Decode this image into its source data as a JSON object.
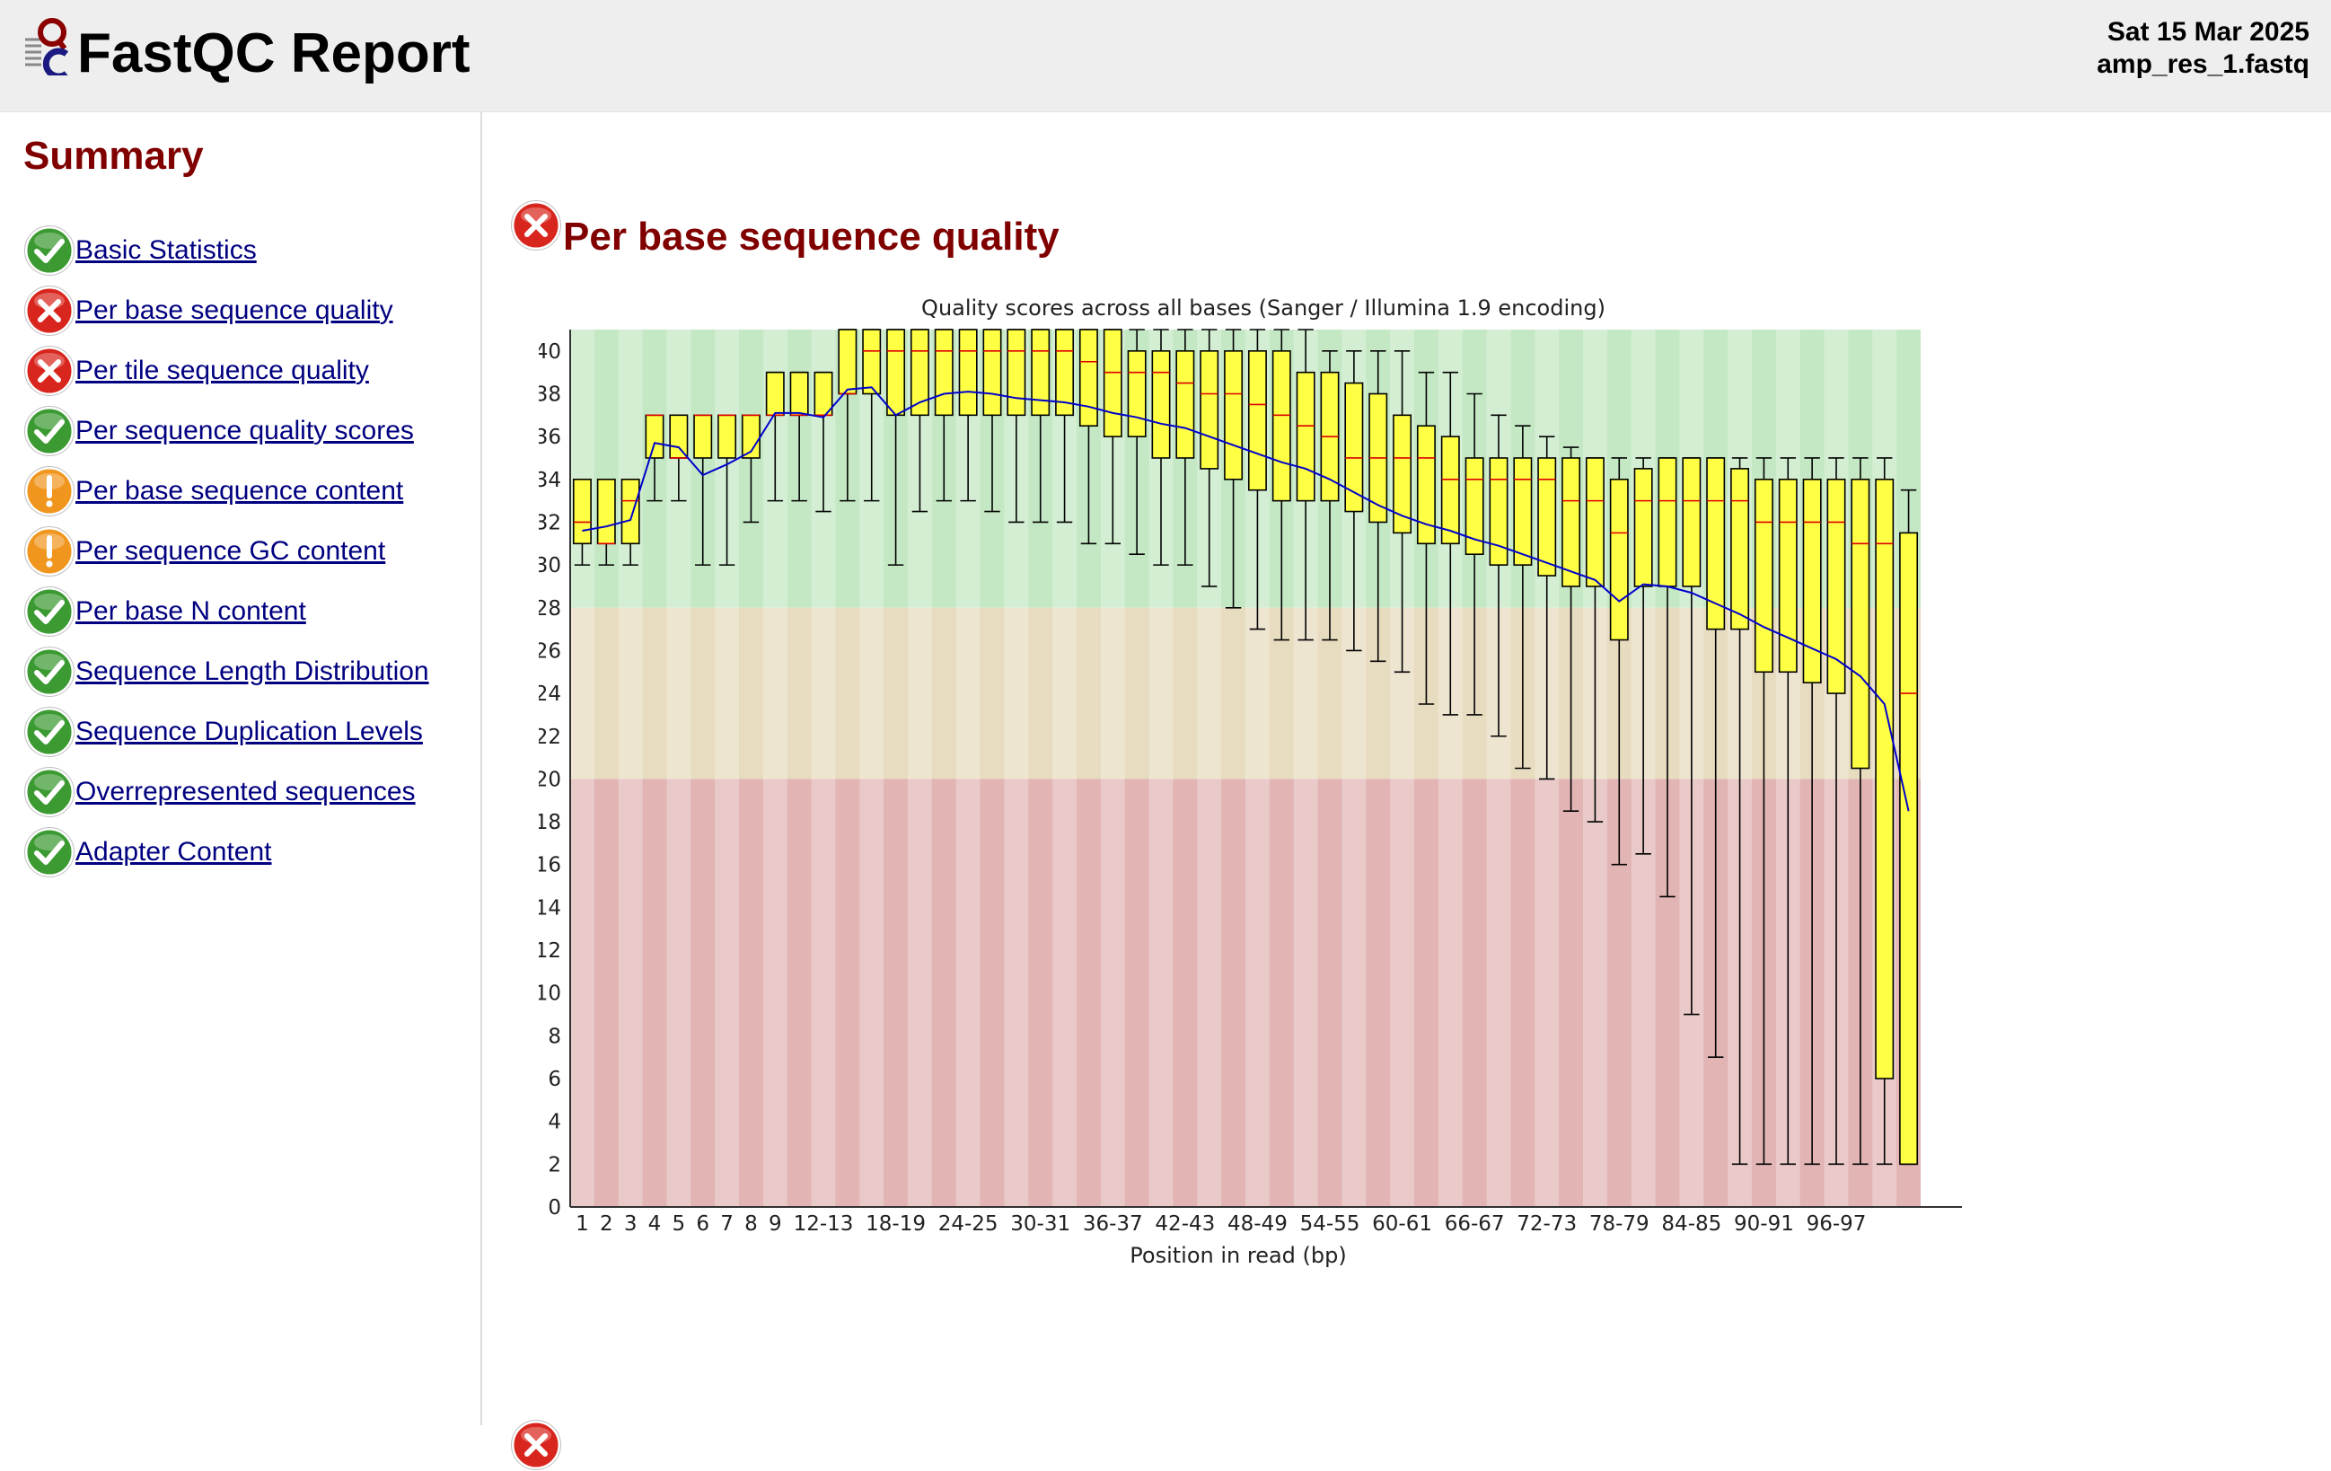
{
  "header": {
    "title": "FastQC Report",
    "date": "Sat 15 Mar 2025",
    "filename": "amp_res_1.fastq"
  },
  "sidebar": {
    "title": "Summary",
    "modules": [
      {
        "label": "Basic Statistics",
        "status": "pass"
      },
      {
        "label": "Per base sequence quality",
        "status": "fail"
      },
      {
        "label": "Per tile sequence quality",
        "status": "fail"
      },
      {
        "label": "Per sequence quality scores",
        "status": "pass"
      },
      {
        "label": "Per base sequence content",
        "status": "warn"
      },
      {
        "label": "Per sequence GC content",
        "status": "warn"
      },
      {
        "label": "Per base N content",
        "status": "pass"
      },
      {
        "label": "Sequence Length Distribution",
        "status": "pass"
      },
      {
        "label": "Sequence Duplication Levels",
        "status": "pass"
      },
      {
        "label": "Overrepresented sequences",
        "status": "pass"
      },
      {
        "label": "Adapter Content",
        "status": "pass"
      }
    ]
  },
  "section": {
    "title": "Per base sequence quality",
    "status": "fail"
  },
  "colors": {
    "pass": "#3c9a32",
    "fail": "#d8261e",
    "warn": "#f0961e",
    "title": "#800000",
    "link": "#000080",
    "box": "#ffff44",
    "median": "#dd0000",
    "mean": "#0000cc",
    "zone_good": "#c4e8c4",
    "zone_ok": "#e8dcc0",
    "zone_bad": "#e2b4b4"
  },
  "chart_data": {
    "type": "boxplot",
    "title": "Quality scores across all bases (Sanger / Illumina 1.9 encoding)",
    "xlabel": "Position in read (bp)",
    "ylabel": "",
    "ylim": [
      0,
      41
    ],
    "yticks": [
      0,
      2,
      4,
      6,
      8,
      10,
      12,
      14,
      16,
      18,
      20,
      22,
      24,
      26,
      28,
      30,
      32,
      34,
      36,
      38,
      40
    ],
    "xtick_labels": [
      "1",
      "2",
      "3",
      "4",
      "5",
      "6",
      "7",
      "8",
      "9",
      "12-13",
      "18-19",
      "24-25",
      "30-31",
      "36-37",
      "42-43",
      "48-49",
      "54-55",
      "60-61",
      "66-67",
      "72-73",
      "78-79",
      "84-85",
      "90-91",
      "96-97"
    ],
    "xtick_bins": [
      0,
      1,
      2,
      3,
      4,
      5,
      6,
      7,
      8,
      10,
      13,
      16,
      19,
      22,
      25,
      28,
      31,
      34,
      37,
      40,
      43,
      46,
      49,
      52
    ],
    "zones": [
      {
        "from": 28,
        "to": 41,
        "quality": "good"
      },
      {
        "from": 20,
        "to": 28,
        "quality": "ok"
      },
      {
        "from": 0,
        "to": 20,
        "quality": "bad"
      }
    ],
    "bins": [
      {
        "label": "1",
        "low": 30,
        "q1": 31,
        "median": 32,
        "q3": 34,
        "high": 34,
        "mean": 31.6
      },
      {
        "label": "2",
        "low": 30,
        "q1": 31,
        "median": 31,
        "q3": 34,
        "high": 34,
        "mean": 31.8
      },
      {
        "label": "3",
        "low": 30,
        "q1": 31,
        "median": 33,
        "q3": 34,
        "high": 34,
        "mean": 32.1
      },
      {
        "label": "4",
        "low": 33,
        "q1": 35,
        "median": 37,
        "q3": 37,
        "high": 37,
        "mean": 35.7
      },
      {
        "label": "5",
        "low": 33,
        "q1": 35,
        "median": 35,
        "q3": 37,
        "high": 37,
        "mean": 35.5
      },
      {
        "label": "6",
        "low": 30,
        "q1": 35,
        "median": 37,
        "q3": 37,
        "high": 37,
        "mean": 34.2
      },
      {
        "label": "7",
        "low": 30,
        "q1": 35,
        "median": 37,
        "q3": 37,
        "high": 37,
        "mean": 34.7
      },
      {
        "label": "8",
        "low": 32,
        "q1": 35,
        "median": 37,
        "q3": 37,
        "high": 37,
        "mean": 35.3
      },
      {
        "label": "9",
        "low": 33,
        "q1": 37,
        "median": 37,
        "q3": 39,
        "high": 39,
        "mean": 37.1
      },
      {
        "label": "10-11",
        "low": 33,
        "q1": 37,
        "median": 37,
        "q3": 39,
        "high": 39,
        "mean": 37.1
      },
      {
        "label": "12-13",
        "low": 32.5,
        "q1": 37,
        "median": 37,
        "q3": 39,
        "high": 39,
        "mean": 36.9
      },
      {
        "label": "14-15",
        "low": 33,
        "q1": 38,
        "median": 38,
        "q3": 41,
        "high": 41,
        "mean": 38.2
      },
      {
        "label": "16-17",
        "low": 33,
        "q1": 38,
        "median": 40,
        "q3": 41,
        "high": 41,
        "mean": 38.3
      },
      {
        "label": "18-19",
        "low": 30,
        "q1": 37,
        "median": 40,
        "q3": 41,
        "high": 41,
        "mean": 37.0
      },
      {
        "label": "20-21",
        "low": 32.5,
        "q1": 37,
        "median": 40,
        "q3": 41,
        "high": 41,
        "mean": 37.6
      },
      {
        "label": "22-23",
        "low": 33,
        "q1": 37,
        "median": 40,
        "q3": 41,
        "high": 41,
        "mean": 38.0
      },
      {
        "label": "24-25",
        "low": 33,
        "q1": 37,
        "median": 40,
        "q3": 41,
        "high": 41,
        "mean": 38.1
      },
      {
        "label": "26-27",
        "low": 32.5,
        "q1": 37,
        "median": 40,
        "q3": 41,
        "high": 41,
        "mean": 38.0
      },
      {
        "label": "28-29",
        "low": 32,
        "q1": 37,
        "median": 40,
        "q3": 41,
        "high": 41,
        "mean": 37.8
      },
      {
        "label": "30-31",
        "low": 32,
        "q1": 37,
        "median": 40,
        "q3": 41,
        "high": 41,
        "mean": 37.7
      },
      {
        "label": "32-33",
        "low": 32,
        "q1": 37,
        "median": 40,
        "q3": 41,
        "high": 41,
        "mean": 37.6
      },
      {
        "label": "34-35",
        "low": 31,
        "q1": 36.5,
        "median": 39.5,
        "q3": 41,
        "high": 41,
        "mean": 37.4
      },
      {
        "label": "36-37",
        "low": 31,
        "q1": 36,
        "median": 39,
        "q3": 41,
        "high": 41,
        "mean": 37.1
      },
      {
        "label": "38-39",
        "low": 30.5,
        "q1": 36,
        "median": 39,
        "q3": 40,
        "high": 41,
        "mean": 36.9
      },
      {
        "label": "40-41",
        "low": 30,
        "q1": 35,
        "median": 39,
        "q3": 40,
        "high": 41,
        "mean": 36.6
      },
      {
        "label": "42-43",
        "low": 30,
        "q1": 35,
        "median": 38.5,
        "q3": 40,
        "high": 41,
        "mean": 36.4
      },
      {
        "label": "44-45",
        "low": 29,
        "q1": 34.5,
        "median": 38,
        "q3": 40,
        "high": 41,
        "mean": 36.0
      },
      {
        "label": "46-47",
        "low": 28,
        "q1": 34,
        "median": 38,
        "q3": 40,
        "high": 41,
        "mean": 35.6
      },
      {
        "label": "48-49",
        "low": 27,
        "q1": 33.5,
        "median": 37.5,
        "q3": 40,
        "high": 41,
        "mean": 35.2
      },
      {
        "label": "50-51",
        "low": 26.5,
        "q1": 33,
        "median": 37,
        "q3": 40,
        "high": 41,
        "mean": 34.8
      },
      {
        "label": "52-53",
        "low": 26.5,
        "q1": 33,
        "median": 36.5,
        "q3": 39,
        "high": 41,
        "mean": 34.5
      },
      {
        "label": "54-55",
        "low": 26.5,
        "q1": 33,
        "median": 36,
        "q3": 39,
        "high": 40,
        "mean": 34.0
      },
      {
        "label": "56-57",
        "low": 26,
        "q1": 32.5,
        "median": 35,
        "q3": 38.5,
        "high": 40,
        "mean": 33.4
      },
      {
        "label": "58-59",
        "low": 25.5,
        "q1": 32,
        "median": 35,
        "q3": 38,
        "high": 40,
        "mean": 32.8
      },
      {
        "label": "60-61",
        "low": 25,
        "q1": 31.5,
        "median": 35,
        "q3": 37,
        "high": 40,
        "mean": 32.3
      },
      {
        "label": "62-63",
        "low": 23.5,
        "q1": 31,
        "median": 35,
        "q3": 36.5,
        "high": 39,
        "mean": 31.9
      },
      {
        "label": "64-65",
        "low": 23,
        "q1": 31,
        "median": 34,
        "q3": 36,
        "high": 39,
        "mean": 31.6
      },
      {
        "label": "66-67",
        "low": 23,
        "q1": 30.5,
        "median": 34,
        "q3": 35,
        "high": 38,
        "mean": 31.2
      },
      {
        "label": "68-69",
        "low": 22,
        "q1": 30,
        "median": 34,
        "q3": 35,
        "high": 37,
        "mean": 30.9
      },
      {
        "label": "70-71",
        "low": 20.5,
        "q1": 30,
        "median": 34,
        "q3": 35,
        "high": 36.5,
        "mean": 30.5
      },
      {
        "label": "72-73",
        "low": 20,
        "q1": 29.5,
        "median": 34,
        "q3": 35,
        "high": 36,
        "mean": 30.1
      },
      {
        "label": "74-75",
        "low": 18.5,
        "q1": 29,
        "median": 33,
        "q3": 35,
        "high": 35.5,
        "mean": 29.7
      },
      {
        "label": "76-77",
        "low": 18,
        "q1": 29,
        "median": 33,
        "q3": 35,
        "high": 35,
        "mean": 29.3
      },
      {
        "label": "78-79",
        "low": 16,
        "q1": 26.5,
        "median": 31.5,
        "q3": 34,
        "high": 35,
        "mean": 28.3
      },
      {
        "label": "80-81",
        "low": 16.5,
        "q1": 29,
        "median": 33,
        "q3": 34.5,
        "high": 35,
        "mean": 29.1
      },
      {
        "label": "82-83",
        "low": 14.5,
        "q1": 29,
        "median": 33,
        "q3": 35,
        "high": 35,
        "mean": 29.0
      },
      {
        "label": "84-85",
        "low": 9,
        "q1": 29,
        "median": 33,
        "q3": 35,
        "high": 35,
        "mean": 28.7
      },
      {
        "label": "86-87",
        "low": 7,
        "q1": 27,
        "median": 33,
        "q3": 35,
        "high": 35,
        "mean": 28.2
      },
      {
        "label": "88-89",
        "low": 2,
        "q1": 27,
        "median": 33,
        "q3": 34.5,
        "high": 35,
        "mean": 27.7
      },
      {
        "label": "90-91",
        "low": 2,
        "q1": 25,
        "median": 32,
        "q3": 34,
        "high": 35,
        "mean": 27.1
      },
      {
        "label": "92-93",
        "low": 2,
        "q1": 25,
        "median": 32,
        "q3": 34,
        "high": 35,
        "mean": 26.6
      },
      {
        "label": "94-95",
        "low": 2,
        "q1": 24.5,
        "median": 32,
        "q3": 34,
        "high": 35,
        "mean": 26.1
      },
      {
        "label": "96-97",
        "low": 2,
        "q1": 24,
        "median": 32,
        "q3": 34,
        "high": 35,
        "mean": 25.6
      },
      {
        "label": "98-99",
        "low": 2,
        "q1": 20.5,
        "median": 31,
        "q3": 34,
        "high": 35,
        "mean": 24.8
      },
      {
        "label": "100-101",
        "low": 2,
        "q1": 6,
        "median": 31,
        "q3": 34,
        "high": 35,
        "mean": 23.5
      },
      {
        "label": "102",
        "low": 2,
        "q1": 2,
        "median": 24,
        "q3": 31.5,
        "high": 33.5,
        "mean": 18.5
      }
    ]
  }
}
